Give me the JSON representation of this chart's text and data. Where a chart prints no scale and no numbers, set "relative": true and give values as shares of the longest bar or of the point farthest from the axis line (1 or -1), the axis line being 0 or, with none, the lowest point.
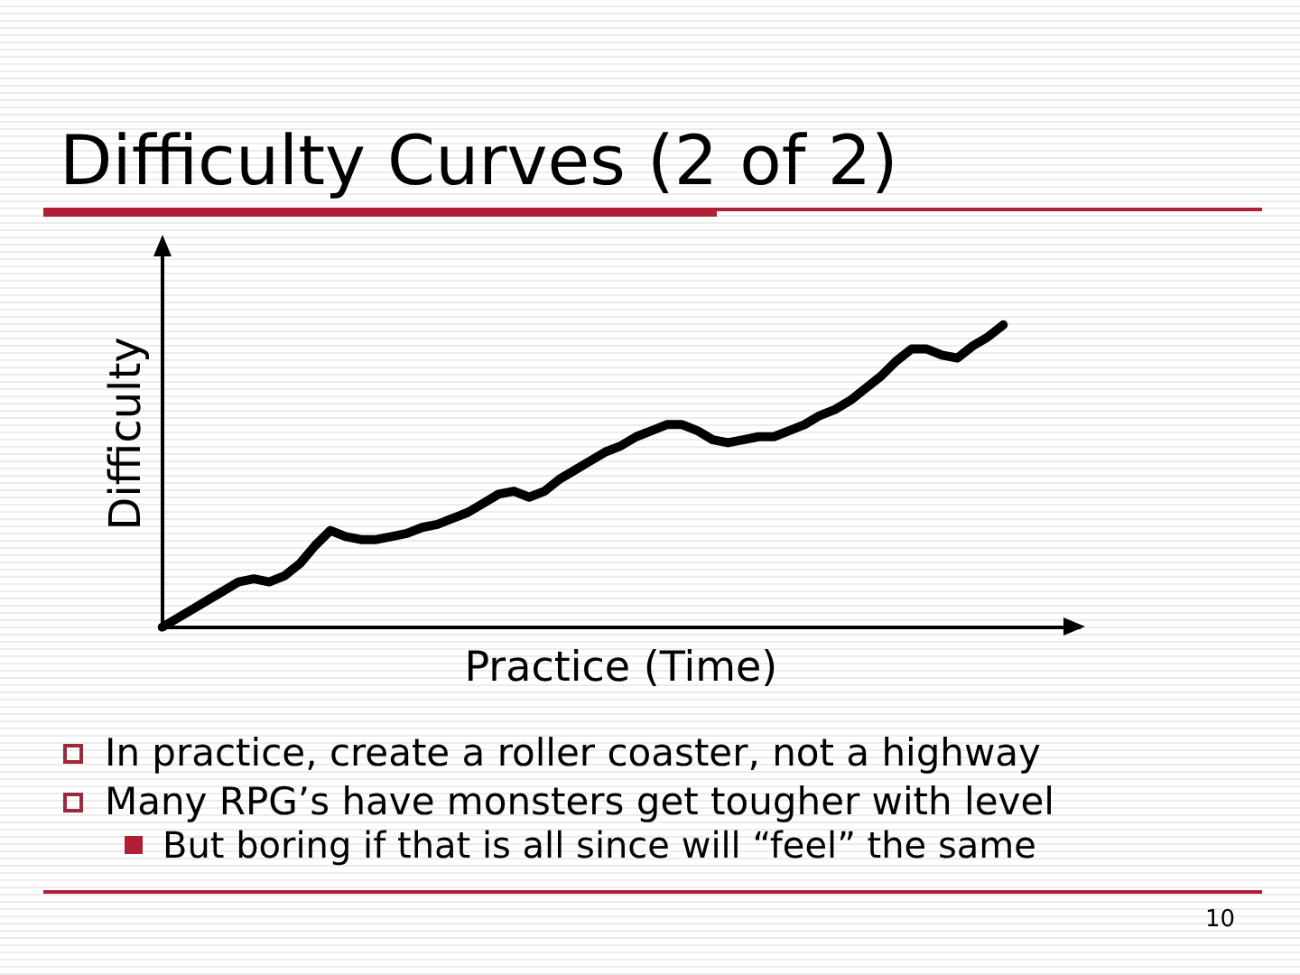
{
  "chart_data": {
    "type": "line",
    "title": "Difficulty Curves (2 of 2)",
    "xlabel": "Practice (Time)",
    "ylabel": "Difficulty",
    "relative": true,
    "tick_labels": false,
    "color": "#000000",
    "categories": [
      null,
      null,
      null,
      null,
      null,
      null,
      null,
      null,
      null,
      null,
      null,
      null,
      null,
      null,
      null,
      null,
      null,
      null,
      null,
      null,
      null,
      null,
      null,
      null,
      null,
      null,
      null,
      null,
      null,
      null,
      null,
      null,
      null,
      null,
      null,
      null,
      null,
      null,
      null,
      null,
      null,
      null,
      null,
      null,
      null,
      null,
      null,
      null,
      null,
      null,
      null,
      null,
      null,
      null,
      null,
      null,
      null,
      null,
      null,
      null,
      null
    ],
    "values": [
      0,
      0.03,
      0.06,
      0.09,
      0.12,
      0.15,
      0.16,
      0.15,
      0.17,
      0.21,
      0.27,
      0.32,
      0.3,
      0.29,
      0.29,
      0.3,
      0.31,
      0.33,
      0.34,
      0.36,
      0.38,
      0.41,
      0.44,
      0.45,
      0.43,
      0.45,
      0.49,
      0.52,
      0.55,
      0.58,
      0.6,
      0.63,
      0.65,
      0.67,
      0.67,
      0.65,
      0.62,
      0.61,
      0.62,
      0.63,
      0.63,
      0.65,
      0.67,
      0.7,
      0.72,
      0.75,
      0.79,
      0.83,
      0.88,
      0.92,
      0.92,
      0.9,
      0.89,
      0.93,
      0.96,
      1,
      null,
      null,
      null,
      null,
      null
    ],
    "annotations": [
      "In practice, create a roller coaster, not a highway",
      "Many RPG’s have monsters get tougher with level",
      "But boring if that is all since will “feel” the same",
      "10"
    ]
  }
}
